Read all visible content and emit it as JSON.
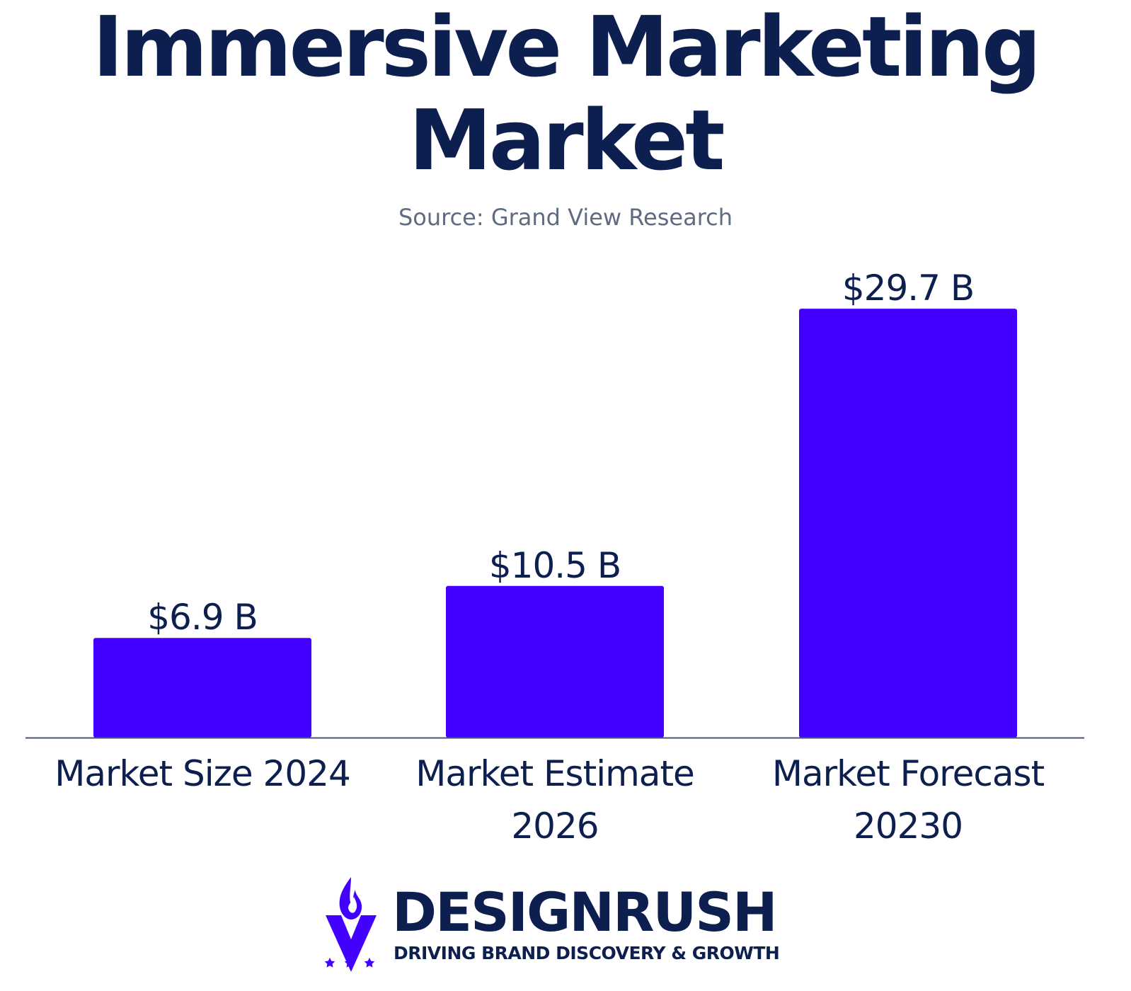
{
  "header": {
    "title_line1": "Immersive Marketing",
    "title_line2": "Market",
    "source": "Source: Grand View Research"
  },
  "colors": {
    "bar": "#4200ff",
    "text": "#0d1f4f",
    "axis": "#4a5573"
  },
  "chart_data": {
    "type": "bar",
    "categories": [
      [
        "Market Size 2024"
      ],
      [
        "Market Estimate",
        "2026"
      ],
      [
        "Market Forecast",
        "20230"
      ]
    ],
    "values": [
      6.9,
      10.5,
      29.7
    ],
    "data_labels": [
      "$6.9 B",
      "$10.5 B",
      "$29.7 B"
    ],
    "ylim": [
      0,
      30
    ],
    "grid": false,
    "legend": "none"
  },
  "logo": {
    "name": "DESIGNRUSH",
    "tagline": "DRIVING BRAND DISCOVERY & GROWTH",
    "icon": "designrush-flame-v-icon"
  }
}
